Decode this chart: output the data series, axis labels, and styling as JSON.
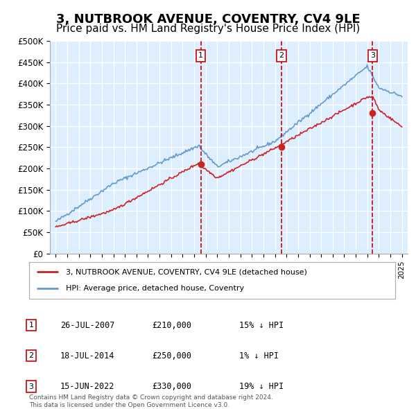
{
  "title": "3, NUTBROOK AVENUE, COVENTRY, CV4 9LE",
  "subtitle": "Price paid vs. HM Land Registry's House Price Index (HPI)",
  "title_fontsize": 13,
  "subtitle_fontsize": 11,
  "background_color": "#ffffff",
  "plot_background_color": "#ddeeff",
  "grid_color": "#ffffff",
  "ylim": [
    0,
    500000
  ],
  "yticks": [
    0,
    50000,
    100000,
    150000,
    200000,
    250000,
    300000,
    350000,
    400000,
    450000,
    500000
  ],
  "sale_dates_num": [
    2007.57,
    2014.55,
    2022.46
  ],
  "sale_prices": [
    210000,
    250000,
    330000
  ],
  "sale_labels": [
    "1",
    "2",
    "3"
  ],
  "legend_house": "3, NUTBROOK AVENUE, COVENTRY, CV4 9LE (detached house)",
  "legend_hpi": "HPI: Average price, detached house, Coventry",
  "table_rows": [
    [
      "1",
      "26-JUL-2007",
      "£210,000",
      "15% ↓ HPI"
    ],
    [
      "2",
      "18-JUL-2014",
      "£250,000",
      "1% ↓ HPI"
    ],
    [
      "3",
      "15-JUN-2022",
      "£330,000",
      "19% ↓ HPI"
    ]
  ],
  "footnote": "Contains HM Land Registry data © Crown copyright and database right 2024.\nThis data is licensed under the Open Government Licence v3.0.",
  "hpi_color": "#6699cc",
  "price_color": "#cc2222",
  "sale_line_color": "#cc0000"
}
